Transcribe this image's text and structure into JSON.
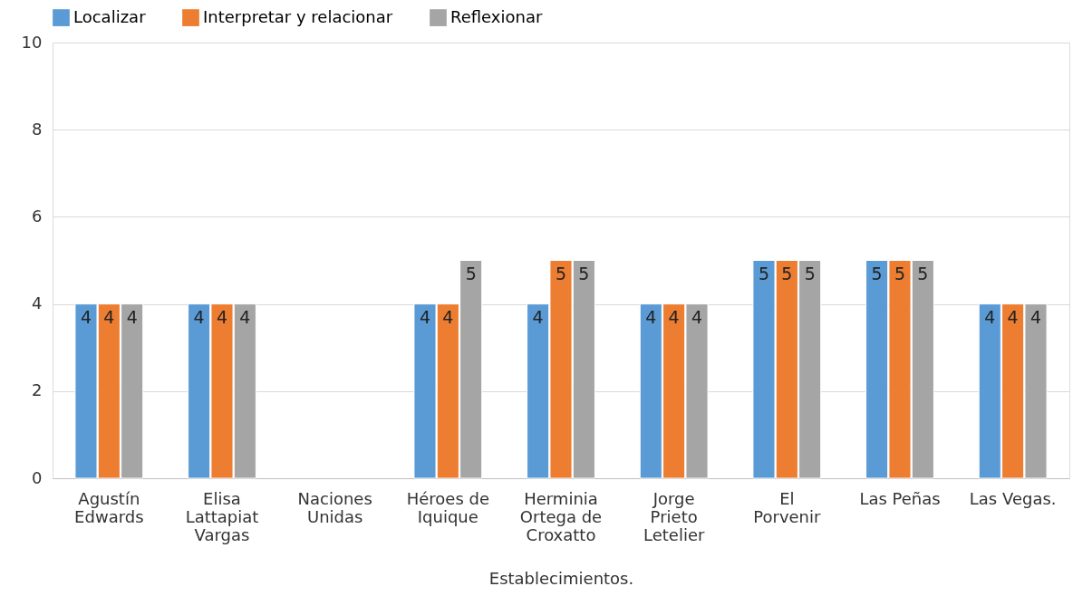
{
  "chart_data": {
    "type": "bar",
    "categories": [
      "Agustín Edwards",
      "Elisa Lattapiat Vargas",
      "Naciones Unidas",
      "Héroes de Iquique",
      "Herminia Ortega de Croxatto",
      "Jorge Prieto Letelier",
      "El Porvenir",
      "Las Peñas",
      "Las Vegas."
    ],
    "series": [
      {
        "name": "Localizar",
        "color": "#5b9bd5",
        "values": [
          4,
          4,
          null,
          4,
          4,
          4,
          5,
          5,
          4
        ]
      },
      {
        "name": "Interpretar y relacionar",
        "color": "#ed7d31",
        "values": [
          4,
          4,
          null,
          4,
          5,
          4,
          5,
          5,
          4
        ]
      },
      {
        "name": "Reflexionar",
        "color": "#a5a5a5",
        "values": [
          4,
          4,
          null,
          5,
          5,
          4,
          5,
          5,
          4
        ]
      }
    ],
    "xlabel": "Establecimientos.",
    "ylim": [
      0,
      10
    ],
    "yticks": [
      0,
      2,
      4,
      6,
      8,
      10
    ],
    "grid": "y",
    "legend": "top",
    "data_labels": true
  }
}
